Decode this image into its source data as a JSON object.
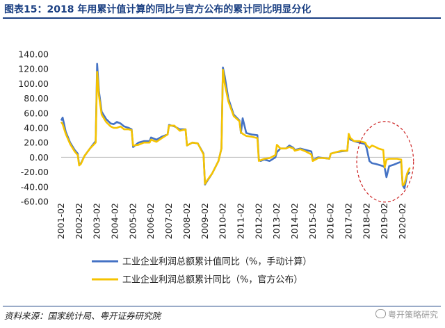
{
  "page": {
    "title": "图表15：2018 年用累计值计算的同比与官方公布的累计同比明显分化",
    "source": "资料来源：国家统计局、粤开证券研究院",
    "watermark": "粤开策略研究"
  },
  "colors": {
    "series1": "#4472c4",
    "series2": "#f5c300",
    "axis": "#bfbfbf",
    "highlight": "#cc2222",
    "title": "#1a3f82"
  },
  "chart_data": {
    "type": "line",
    "title": "",
    "xlabel": "",
    "ylabel": "",
    "ylim": [
      -60,
      140
    ],
    "yticks": [
      140,
      120,
      100,
      80,
      60,
      40,
      20,
      0,
      -20,
      -40,
      -60
    ],
    "ytick_labels": [
      "140.00",
      "120.00",
      "100.00",
      "80.00",
      "60.00",
      "40.00",
      "20.00",
      "0.00",
      "-20.00",
      "-40.00",
      "-60.00"
    ],
    "xtick_labels": [
      "2001-02",
      "2002-02",
      "2003-02",
      "2004-02",
      "2005-02",
      "2006-02",
      "2007-02",
      "2008-02",
      "2009-02",
      "2010-02",
      "2011-02",
      "2012-02",
      "2013-02",
      "2014-02",
      "2015-02",
      "2016-02",
      "2017-02",
      "2018-02",
      "2019-02",
      "2020-02"
    ],
    "x_range": [
      2001.0,
      2020.5
    ],
    "legend": "bottom",
    "grid": false,
    "annotation": "dashed ellipse highlighting 2017-2020 divergence",
    "series": [
      {
        "name": "工业企业利润总额累计值同比（%，手动计算）",
        "color": "#4472c4",
        "points": [
          [
            2001.0,
            50
          ],
          [
            2001.08,
            54
          ],
          [
            2001.25,
            35
          ],
          [
            2001.5,
            20
          ],
          [
            2001.75,
            10
          ],
          [
            2001.92,
            5
          ],
          [
            2002.0,
            -10
          ],
          [
            2002.1,
            -8
          ],
          [
            2002.3,
            2
          ],
          [
            2002.6,
            12
          ],
          [
            2002.92,
            22
          ],
          [
            2003.0,
            127
          ],
          [
            2003.1,
            90
          ],
          [
            2003.25,
            62
          ],
          [
            2003.5,
            52
          ],
          [
            2003.75,
            46
          ],
          [
            2003.92,
            45
          ],
          [
            2004.1,
            48
          ],
          [
            2004.3,
            46
          ],
          [
            2004.5,
            42
          ],
          [
            2004.75,
            40
          ],
          [
            2004.92,
            38
          ],
          [
            2005.0,
            14
          ],
          [
            2005.3,
            20
          ],
          [
            2005.6,
            22
          ],
          [
            2005.92,
            22
          ],
          [
            2006.0,
            27
          ],
          [
            2006.3,
            24
          ],
          [
            2006.6,
            28
          ],
          [
            2006.92,
            31
          ],
          [
            2007.0,
            44
          ],
          [
            2007.3,
            42
          ],
          [
            2007.6,
            38
          ],
          [
            2007.92,
            38
          ],
          [
            2008.0,
            16
          ],
          [
            2008.3,
            20
          ],
          [
            2008.6,
            19
          ],
          [
            2008.92,
            5
          ],
          [
            2009.0,
            -37
          ],
          [
            2009.1,
            -33
          ],
          [
            2009.4,
            -22
          ],
          [
            2009.75,
            -5
          ],
          [
            2009.92,
            12
          ],
          [
            2010.0,
            122
          ],
          [
            2010.1,
            110
          ],
          [
            2010.3,
            80
          ],
          [
            2010.6,
            58
          ],
          [
            2010.92,
            50
          ],
          [
            2011.0,
            33
          ],
          [
            2011.1,
            53
          ],
          [
            2011.3,
            33
          ],
          [
            2011.6,
            31
          ],
          [
            2011.92,
            30
          ],
          [
            2012.0,
            -3
          ],
          [
            2012.1,
            -5
          ],
          [
            2012.3,
            -3
          ],
          [
            2012.6,
            -5
          ],
          [
            2012.92,
            0
          ],
          [
            2013.0,
            7
          ],
          [
            2013.2,
            12
          ],
          [
            2013.5,
            12
          ],
          [
            2013.7,
            16
          ],
          [
            2013.92,
            13
          ],
          [
            2014.0,
            10
          ],
          [
            2014.3,
            12
          ],
          [
            2014.6,
            10
          ],
          [
            2014.92,
            8
          ],
          [
            2015.0,
            -4
          ],
          [
            2015.3,
            0
          ],
          [
            2015.6,
            -1
          ],
          [
            2015.92,
            -2
          ],
          [
            2016.0,
            5
          ],
          [
            2016.3,
            7
          ],
          [
            2016.6,
            8
          ],
          [
            2016.92,
            9
          ],
          [
            2017.0,
            30
          ],
          [
            2017.1,
            24
          ],
          [
            2017.3,
            22
          ],
          [
            2017.6,
            20
          ],
          [
            2017.92,
            18
          ],
          [
            2018.0,
            12
          ],
          [
            2018.15,
            -5
          ],
          [
            2018.3,
            -8
          ],
          [
            2018.5,
            -9
          ],
          [
            2018.65,
            -10
          ],
          [
            2018.92,
            -12
          ],
          [
            2019.0,
            -14
          ],
          [
            2019.1,
            -27
          ],
          [
            2019.25,
            -12
          ],
          [
            2019.5,
            -10
          ],
          [
            2019.7,
            -8
          ],
          [
            2019.92,
            -6
          ],
          [
            2020.0,
            -38
          ],
          [
            2020.1,
            -42
          ],
          [
            2020.25,
            -24
          ],
          [
            2020.4,
            -20
          ]
        ]
      },
      {
        "name": "工业企业利润总额累计同比（%，官方公布）",
        "color": "#f5c300",
        "points": [
          [
            2001.0,
            48
          ],
          [
            2001.08,
            45
          ],
          [
            2001.25,
            32
          ],
          [
            2001.5,
            18
          ],
          [
            2001.75,
            8
          ],
          [
            2001.92,
            3
          ],
          [
            2002.0,
            -11
          ],
          [
            2002.1,
            -9
          ],
          [
            2002.3,
            2
          ],
          [
            2002.6,
            12
          ],
          [
            2002.92,
            20
          ],
          [
            2003.0,
            116
          ],
          [
            2003.1,
            84
          ],
          [
            2003.25,
            58
          ],
          [
            2003.5,
            48
          ],
          [
            2003.75,
            42
          ],
          [
            2003.92,
            40
          ],
          [
            2004.1,
            40
          ],
          [
            2004.3,
            42
          ],
          [
            2004.5,
            38
          ],
          [
            2004.75,
            38
          ],
          [
            2004.92,
            37
          ],
          [
            2005.0,
            16
          ],
          [
            2005.3,
            17
          ],
          [
            2005.6,
            20
          ],
          [
            2005.92,
            20
          ],
          [
            2006.0,
            24
          ],
          [
            2006.3,
            21
          ],
          [
            2006.6,
            26
          ],
          [
            2006.92,
            31
          ],
          [
            2007.0,
            43
          ],
          [
            2007.3,
            43
          ],
          [
            2007.6,
            36
          ],
          [
            2007.92,
            38
          ],
          [
            2008.0,
            16
          ],
          [
            2008.3,
            20
          ],
          [
            2008.6,
            19
          ],
          [
            2008.92,
            4
          ],
          [
            2009.0,
            -36
          ],
          [
            2009.1,
            -32
          ],
          [
            2009.4,
            -22
          ],
          [
            2009.75,
            -5
          ],
          [
            2009.92,
            12
          ],
          [
            2010.0,
            119
          ],
          [
            2010.1,
            100
          ],
          [
            2010.3,
            76
          ],
          [
            2010.6,
            56
          ],
          [
            2010.92,
            49
          ],
          [
            2011.0,
            34
          ],
          [
            2011.1,
            32
          ],
          [
            2011.3,
            29
          ],
          [
            2011.6,
            28
          ],
          [
            2011.92,
            26
          ],
          [
            2012.0,
            -5
          ],
          [
            2012.1,
            -4
          ],
          [
            2012.3,
            -2
          ],
          [
            2012.6,
            -1
          ],
          [
            2012.92,
            3
          ],
          [
            2013.0,
            17
          ],
          [
            2013.2,
            12
          ],
          [
            2013.5,
            12
          ],
          [
            2013.7,
            14
          ],
          [
            2013.92,
            12
          ],
          [
            2014.0,
            9
          ],
          [
            2014.3,
            11
          ],
          [
            2014.6,
            8
          ],
          [
            2014.92,
            4
          ],
          [
            2015.0,
            -5
          ],
          [
            2015.3,
            -1
          ],
          [
            2015.6,
            -1
          ],
          [
            2015.92,
            -2
          ],
          [
            2016.0,
            5
          ],
          [
            2016.3,
            7
          ],
          [
            2016.6,
            9
          ],
          [
            2016.92,
            9
          ],
          [
            2017.0,
            32
          ],
          [
            2017.1,
            26
          ],
          [
            2017.3,
            22
          ],
          [
            2017.6,
            22
          ],
          [
            2017.92,
            20
          ],
          [
            2018.0,
            16
          ],
          [
            2018.15,
            13
          ],
          [
            2018.3,
            16
          ],
          [
            2018.5,
            14
          ],
          [
            2018.65,
            12
          ],
          [
            2018.92,
            10
          ],
          [
            2019.0,
            -14
          ],
          [
            2019.1,
            -3
          ],
          [
            2019.25,
            -2
          ],
          [
            2019.5,
            -2
          ],
          [
            2019.7,
            -2
          ],
          [
            2019.92,
            -3
          ],
          [
            2020.0,
            -38
          ],
          [
            2020.1,
            -36
          ],
          [
            2020.25,
            -22
          ],
          [
            2020.4,
            -14
          ]
        ]
      }
    ]
  }
}
